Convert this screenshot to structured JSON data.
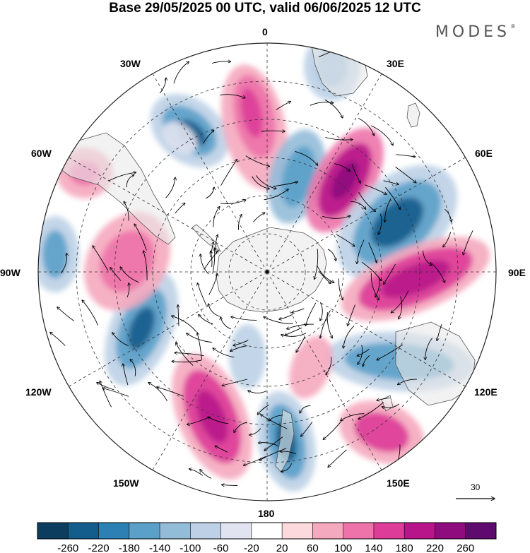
{
  "header": {
    "title": "Base 29/05/2025 00 UTC, valid 06/06/2025 12 UTC",
    "brand": "MODES"
  },
  "map": {
    "projection": "south-polar-stereographic",
    "longitude_labels": [
      "0",
      "30E",
      "60E",
      "90E",
      "120E",
      "150E",
      "180",
      "150W",
      "120W",
      "90W",
      "60W",
      "30W"
    ],
    "reference_vector": "30",
    "ocean_color": "#ffffff",
    "land_color": "#e9e9e9"
  },
  "colorbar": {
    "tick_labels": [
      "-260",
      "-220",
      "-180",
      "-140",
      "-100",
      "-60",
      "-20",
      "20",
      "60",
      "100",
      "140",
      "180",
      "220",
      "260"
    ],
    "colors": [
      "#0d3d5e",
      "#135d8c",
      "#2d80b3",
      "#5ba0c9",
      "#93bcd9",
      "#bdd0e6",
      "#e2e3f0",
      "#ffffff",
      "#fbd9dc",
      "#f5a9be",
      "#ed73aa",
      "#dd3c98",
      "#b8158a",
      "#8e0c7d",
      "#5e0a6e"
    ]
  }
}
